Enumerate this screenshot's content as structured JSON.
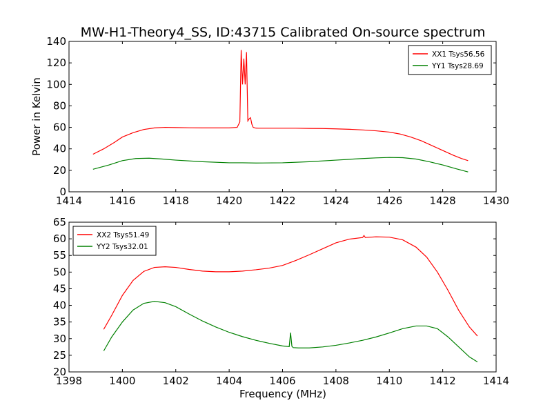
{
  "figure_title": "MW-H1-Theory4_SS, ID:43715 Calibrated On-source spectrum",
  "chart_data": [
    {
      "type": "line",
      "title": "MW-H1-Theory4_SS, ID:43715 Calibrated On-source spectrum",
      "xlabel": "",
      "ylabel": "Power in Kelvin",
      "xlim": [
        1414,
        1430
      ],
      "ylim": [
        0,
        140
      ],
      "xticks": [
        "1414",
        "1416",
        "1418",
        "1420",
        "1422",
        "1424",
        "1426",
        "1428",
        "1430"
      ],
      "yticks": [
        "0",
        "20",
        "40",
        "60",
        "80",
        "100",
        "120",
        "140"
      ],
      "grid": false,
      "legend_position": "top-right",
      "series": [
        {
          "name": "XX1 Tsys56.56",
          "color": "#ff0000",
          "x": [
            1414.9,
            1415.3,
            1415.7,
            1416.0,
            1416.4,
            1416.8,
            1417.2,
            1417.6,
            1418.0,
            1418.5,
            1419.0,
            1419.5,
            1420.0,
            1420.3,
            1420.4,
            1420.45,
            1420.5,
            1420.55,
            1420.6,
            1420.65,
            1420.7,
            1420.75,
            1420.8,
            1420.85,
            1420.9,
            1420.95,
            1421.0,
            1421.1,
            1421.3,
            1421.6,
            1422.0,
            1422.5,
            1423.0,
            1423.5,
            1424.0,
            1424.5,
            1425.0,
            1425.5,
            1426.0,
            1426.4,
            1426.8,
            1427.2,
            1427.6,
            1428.0,
            1428.4,
            1428.7,
            1428.95
          ],
          "y": [
            35,
            40,
            46,
            51,
            55,
            58,
            59.5,
            60,
            59.8,
            59.6,
            59.5,
            59.5,
            59.5,
            60,
            65,
            132,
            100,
            124,
            100,
            130,
            66,
            68,
            69,
            63,
            60,
            59.6,
            59.3,
            59.2,
            59.2,
            59.2,
            59.2,
            59.2,
            59,
            58.9,
            58.6,
            58.2,
            57.6,
            56.8,
            55.6,
            53.8,
            51,
            47.5,
            43,
            38.5,
            34,
            31,
            29
          ]
        },
        {
          "name": "YY1 Tsys28.69",
          "color": "#008000",
          "x": [
            1414.9,
            1415.5,
            1416.0,
            1416.5,
            1417.0,
            1417.5,
            1418.0,
            1419.0,
            1420.0,
            1420.5,
            1421.0,
            1422.0,
            1423.0,
            1424.0,
            1425.0,
            1425.5,
            1426.0,
            1426.5,
            1427.0,
            1427.5,
            1428.0,
            1428.5,
            1428.95
          ],
          "y": [
            21,
            25,
            29,
            31,
            31.3,
            30.5,
            29.5,
            28,
            27,
            27,
            26.8,
            27,
            28,
            29.5,
            31,
            31.6,
            32,
            31.8,
            30.5,
            28,
            25,
            21.5,
            18.5
          ]
        }
      ]
    },
    {
      "type": "line",
      "title": "",
      "xlabel": "Frequency (MHz)",
      "ylabel": "",
      "xlim": [
        1398,
        1414
      ],
      "ylim": [
        20,
        65
      ],
      "xticks": [
        "1398",
        "1400",
        "1402",
        "1404",
        "1406",
        "1408",
        "1410",
        "1412",
        "1414"
      ],
      "yticks": [
        "20",
        "25",
        "30",
        "35",
        "40",
        "45",
        "50",
        "55",
        "60",
        "65"
      ],
      "grid": false,
      "legend_position": "top-left",
      "series": [
        {
          "name": "XX2 Tsys51.49",
          "color": "#ff0000",
          "x": [
            1399.3,
            1399.6,
            1400.0,
            1400.4,
            1400.8,
            1401.2,
            1401.6,
            1402.0,
            1402.5,
            1403.0,
            1403.5,
            1404.0,
            1404.5,
            1405.0,
            1405.5,
            1406.0,
            1406.5,
            1407.0,
            1407.5,
            1408.0,
            1408.5,
            1409.0,
            1409.05,
            1409.1,
            1409.5,
            1410.0,
            1410.5,
            1411.0,
            1411.4,
            1411.8,
            1412.2,
            1412.6,
            1413.0,
            1413.3
          ],
          "y": [
            32.8,
            37,
            43,
            47.5,
            50.2,
            51.4,
            51.6,
            51.4,
            50.8,
            50.3,
            50.1,
            50.1,
            50.3,
            50.7,
            51.2,
            52,
            53.5,
            55.2,
            57,
            58.8,
            59.9,
            60.4,
            61,
            60.4,
            60.6,
            60.5,
            59.7,
            57.5,
            54.5,
            50,
            44.5,
            38.5,
            33.5,
            30.8
          ]
        },
        {
          "name": "YY2 Tsys32.01",
          "color": "#008000",
          "x": [
            1399.3,
            1399.6,
            1400.0,
            1400.4,
            1400.8,
            1401.2,
            1401.6,
            1402.0,
            1402.5,
            1403.0,
            1403.5,
            1404.0,
            1404.5,
            1405.0,
            1405.5,
            1406.0,
            1406.25,
            1406.3,
            1406.35,
            1406.4,
            1406.6,
            1407.0,
            1407.5,
            1408.0,
            1408.5,
            1409.0,
            1409.5,
            1410.0,
            1410.5,
            1411.0,
            1411.4,
            1411.8,
            1412.2,
            1412.6,
            1413.0,
            1413.3
          ],
          "y": [
            26.3,
            30.5,
            35,
            38.6,
            40.6,
            41.2,
            40.8,
            39.6,
            37.4,
            35.3,
            33.5,
            31.9,
            30.6,
            29.5,
            28.6,
            27.8,
            27.6,
            31.8,
            27.7,
            27.3,
            27.2,
            27.2,
            27.5,
            28,
            28.7,
            29.5,
            30.5,
            31.7,
            33,
            33.8,
            33.8,
            33,
            30.5,
            27.5,
            24.5,
            23
          ]
        }
      ]
    }
  ]
}
